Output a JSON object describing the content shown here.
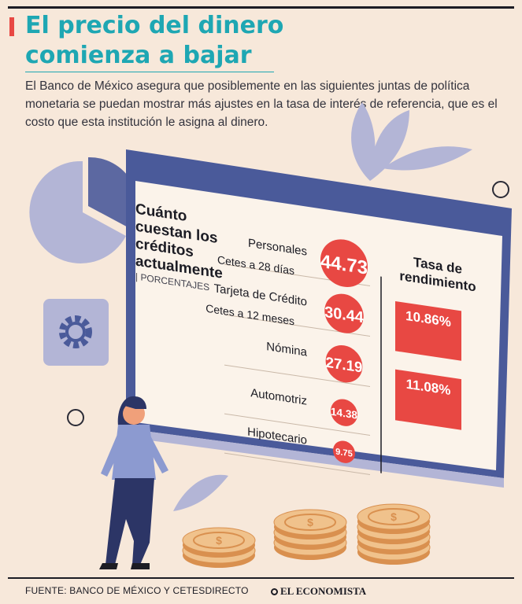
{
  "header": {
    "title_line1": "El precio del dinero",
    "title_line2": "comienza a bajar",
    "subtitle": "El Banco de México asegura que posiblemente en las siguientes juntas de política monetaria se puedan mostrar más ajustes en la tasa de interés de referencia, que es el costo que esta institución le asigna al dinero."
  },
  "colors": {
    "background": "#f7e8da",
    "title": "#1ea7b3",
    "accent_red": "#e84843",
    "panel_blue": "#4a5a9a",
    "decor_lavender": "#b3b5d6"
  },
  "chart_data": [
    {
      "type": "bar",
      "title": "Cuánto cuestan los créditos actualmente",
      "unit_label": "| PORCENTAJES",
      "encoding": "circle",
      "categories": [
        "Personales",
        "Tarjeta de Crédito",
        "Nómina",
        "Automotriz",
        "Hipotecario"
      ],
      "values": [
        44.73,
        30.44,
        27.19,
        14.38,
        9.75
      ],
      "value_labels": [
        "44.73",
        "30.44",
        "27.19",
        "14.38",
        "9.75"
      ]
    },
    {
      "type": "bar",
      "title": "Tasa de rendimiento",
      "categories": [
        "Cetes a 28 días",
        "Cetes a 12 meses"
      ],
      "values": [
        10.86,
        11.08
      ],
      "value_labels": [
        "10.86%",
        "11.08%"
      ]
    }
  ],
  "footer": {
    "source": "FUENTE: BANCO DE MÉXICO Y CETESDIRECTO",
    "brand": "EL ECONOMISTA"
  }
}
